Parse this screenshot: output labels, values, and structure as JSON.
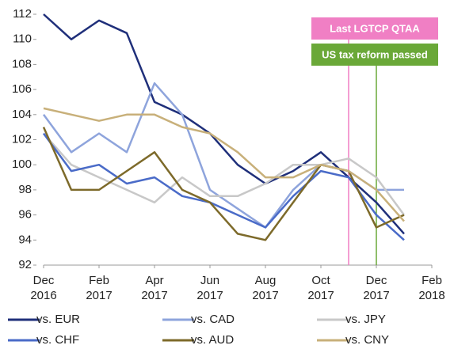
{
  "chart_data": {
    "type": "line",
    "x": [
      "2016-12",
      "2017-01",
      "2017-02",
      "2017-03",
      "2017-04",
      "2017-05",
      "2017-06",
      "2017-07",
      "2017-08",
      "2017-09",
      "2017-10",
      "2017-11",
      "2017-12",
      "2018-01"
    ],
    "series": [
      {
        "name": "vs. EUR",
        "color": "#1f2f7a",
        "values": [
          112,
          110,
          111.5,
          110.5,
          105,
          104,
          102.5,
          100,
          98.5,
          99.5,
          101,
          99,
          97,
          94.5
        ]
      },
      {
        "name": "vs. CAD",
        "color": "#8ea4dc",
        "values": [
          104,
          101,
          102.5,
          101,
          106.5,
          104,
          98,
          96.5,
          95,
          98,
          100,
          99.5,
          98,
          98
        ]
      },
      {
        "name": "vs. JPY",
        "color": "#c8c8c8",
        "values": [
          102.5,
          100,
          99,
          98,
          97,
          99,
          97.5,
          97.5,
          98.5,
          100,
          100,
          100.5,
          99,
          96
        ]
      },
      {
        "name": "vs. CHF",
        "color": "#4a6bc8",
        "values": [
          102.5,
          99.5,
          100,
          98.5,
          99,
          97.5,
          97,
          96,
          95,
          97.5,
          99.5,
          99,
          96,
          94
        ]
      },
      {
        "name": "vs. AUD",
        "color": "#7d6a2a",
        "values": [
          103,
          98,
          98,
          99.5,
          101,
          98,
          97,
          94.5,
          94,
          97,
          100,
          99.5,
          95,
          96
        ]
      },
      {
        "name": "vs. CNY",
        "color": "#c8b07a",
        "values": [
          104.5,
          104,
          103.5,
          104,
          104,
          103,
          102.5,
          101,
          99,
          99,
          100,
          99.5,
          98,
          95.5
        ]
      }
    ],
    "xlim": [
      "2016-12",
      "2018-02"
    ],
    "xticks": [
      {
        "value": "2016-12",
        "label": "Dec\n2016"
      },
      {
        "value": "2017-02",
        "label": "Feb\n2017"
      },
      {
        "value": "2017-04",
        "label": "Apr\n2017"
      },
      {
        "value": "2017-06",
        "label": "Jun\n2017"
      },
      {
        "value": "2017-08",
        "label": "Aug\n2017"
      },
      {
        "value": "2017-10",
        "label": "Oct\n2017"
      },
      {
        "value": "2017-12",
        "label": "Dec\n2017"
      },
      {
        "value": "2018-02",
        "label": "Feb\n2018"
      }
    ],
    "ylim": [
      92,
      112
    ],
    "yticks": [
      92,
      94,
      96,
      98,
      100,
      102,
      104,
      106,
      108,
      110,
      112
    ],
    "annotations": [
      {
        "text": "Last LGTCP QTAA",
        "x": "2017-11",
        "color": "#f07fc4"
      },
      {
        "text": "US tax reform passed",
        "x": "2017-12",
        "color": "#6aa838"
      }
    ]
  }
}
